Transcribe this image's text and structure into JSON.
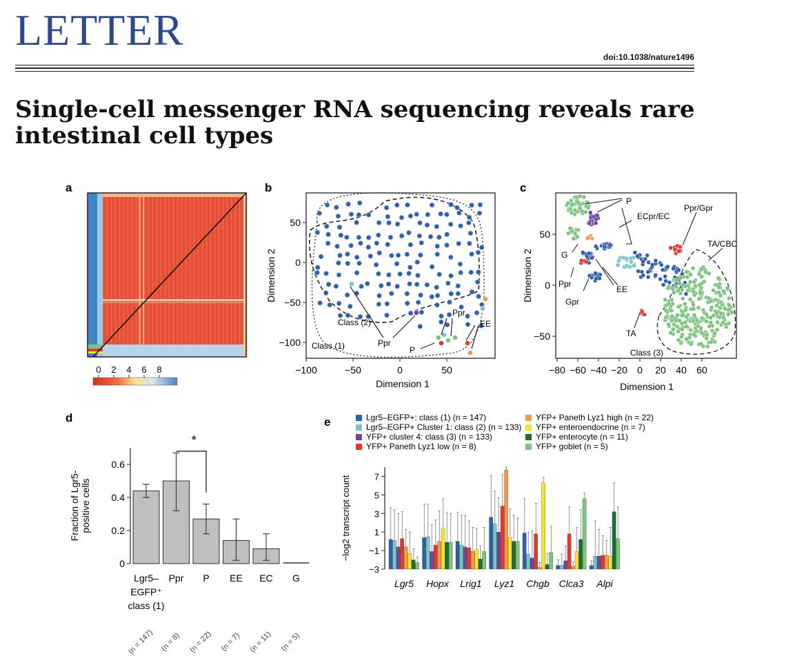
{
  "header": {
    "journal": "LETTER",
    "doi": "doi:10.1038/nature1496"
  },
  "article": {
    "title": "Single-cell messenger RNA sequencing reveals rare intestinal cell types"
  },
  "colors": {
    "journal_blue": "#2b4a8b",
    "bar_grey": "#bfbfbf",
    "class1_blue": "#2f5fa8",
    "cluster1_teal": "#79c6c6",
    "cluster4_purple": "#6a4a9c",
    "paneth_low_red": "#e03a2f",
    "paneth_high_orange": "#f2994a",
    "enteroendocrine_yellow": "#f5e42a",
    "enterocyte_green": "#1e6b35",
    "goblet_green": "#7cc47c"
  },
  "panels": {
    "a": {
      "label": "a",
      "colorbar_ticks": [
        "0",
        "2",
        "4",
        "6",
        "8"
      ]
    },
    "b": {
      "label": "b",
      "xlabel": "Dimension 1",
      "ylabel": "Dimension 2",
      "xticks": [
        "−100",
        "−50",
        "0",
        "50"
      ],
      "yticks": [
        "50",
        "0",
        "−50",
        "−100"
      ],
      "annotations": [
        "Class (1)",
        "Class (2)",
        "Ppr",
        "Ppr",
        "P",
        "EE"
      ]
    },
    "c": {
      "label": "c",
      "xlabel": "Dimension 1",
      "ylabel": "Dimension 2",
      "xticks": [
        "−80",
        "−60",
        "−40",
        "−20",
        "0",
        "20",
        "40",
        "60"
      ],
      "yticks": [
        "50",
        "0",
        "−50"
      ],
      "annotations": [
        "P",
        "ECpr/EC",
        "Ppr/Gpr",
        "TA/CBC",
        "G",
        "Ppr",
        "Gpr",
        "EE",
        "TA",
        "Class (3)"
      ]
    },
    "d": {
      "label": "d",
      "significance": "*"
    },
    "e": {
      "label": "e"
    }
  },
  "chart_data": [
    {
      "type": "bar",
      "panel": "d",
      "ylabel": "Fraction of Lgr5-positive cells",
      "ylim": [
        0,
        0.7
      ],
      "yticks": [
        "0",
        "0.2",
        "0.4",
        "0.6"
      ],
      "categories": [
        "Lgr5–EGFP+ class (1)",
        "Ppr",
        "P",
        "EE",
        "EC",
        "G"
      ],
      "category_lines": [
        [
          "Lgr5–",
          "EGFP⁺",
          "class (1)"
        ],
        [
          "Ppr"
        ],
        [
          "P"
        ],
        [
          "EE"
        ],
        [
          "EC"
        ],
        [
          "G"
        ]
      ],
      "n_labels": [
        "(n = 147)",
        "(n = 8)",
        "(n = 22)",
        "(n = 7)",
        "(n = 11)",
        "(n = 5)"
      ],
      "values": [
        0.44,
        0.5,
        0.27,
        0.14,
        0.09,
        0.0
      ],
      "error_low": [
        0.4,
        0.32,
        0.18,
        0.02,
        0.02,
        0.0
      ],
      "error_high": [
        0.48,
        0.67,
        0.36,
        0.27,
        0.18,
        0.0
      ]
    },
    {
      "type": "bar",
      "panel": "e",
      "ylabel": "−log2 transcript count",
      "ylim": [
        -3,
        8
      ],
      "yticks": [
        "7",
        "5",
        "3",
        "1",
        "−1",
        "−3"
      ],
      "categories": [
        "Lgr5",
        "Hopx",
        "Lrig1",
        "Lyz1",
        "Chgb",
        "Clca3",
        "Alpi"
      ],
      "series": [
        {
          "name": "Lgr5–EGFP+: class (1) (n = 147)",
          "color": "#2f5fa8",
          "values": [
            0.2,
            0.4,
            0.0,
            2.6,
            0.9,
            -2.6,
            -2.6
          ],
          "err": [
            3.4,
            3.6,
            3.1,
            4.5,
            3.7,
            0.6,
            0.5
          ]
        },
        {
          "name": "Lgr5–EGFP+ Cluster 1: class (2) (n = 133)",
          "color": "#79c6c6",
          "values": [
            0.1,
            0.5,
            -0.4,
            1.9,
            -1.4,
            -2.6,
            -1.6
          ],
          "err": [
            3.3,
            3.5,
            3.2,
            3.5,
            2.4,
            1.2,
            3.8
          ]
        },
        {
          "name": "YFP+ cluster 4: class (3) (n = 133)",
          "color": "#6a4a9c",
          "values": [
            -0.6,
            -1.1,
            -0.6,
            1.0,
            -1.8,
            -2.1,
            -1.6
          ],
          "err": [
            3.6,
            2.9,
            3.4,
            3.7,
            2.9,
            1.6,
            2.9
          ]
        },
        {
          "name": "YFP+ Paneth Lyz1 low (n = 8)",
          "color": "#e03a2f",
          "values": [
            0.3,
            -0.4,
            -0.7,
            3.8,
            0.8,
            0.8,
            -1.5
          ],
          "err": [
            2.9,
            2.7,
            2.9,
            3.4,
            3.3,
            2.9,
            2.1
          ]
        },
        {
          "name": "YFP+ Paneth Lyz1 high (n = 22)",
          "color": "#f2994a",
          "values": [
            -0.6,
            0.0,
            -1.1,
            7.7,
            -2.8,
            -2.7,
            -1.5
          ],
          "err": [
            1.9,
            3.3,
            2.6,
            0.5,
            0.5,
            0.5,
            1.6
          ]
        },
        {
          "name": "YFP+ enteroendocrine (n = 7)",
          "color": "#f5e42a",
          "values": [
            -1.3,
            1.4,
            -0.9,
            0.4,
            6.3,
            -1.1,
            -1.6
          ],
          "err": [
            2.3,
            3.2,
            2.3,
            3.1,
            0.6,
            2.6,
            3.1
          ]
        },
        {
          "name": "YFP+ enterocyte (n = 11)",
          "color": "#1e6b35",
          "values": [
            -2.0,
            -0.1,
            -1.9,
            0.0,
            -2.5,
            0.2,
            3.2
          ],
          "err": [
            1.2,
            3.2,
            1.4,
            2.8,
            1.2,
            3.2,
            3.1
          ]
        },
        {
          "name": "YFP+ goblet (n = 5)",
          "color": "#7cc47c",
          "values": [
            -2.3,
            -0.1,
            -1.1,
            0.0,
            -1.2,
            4.6,
            0.3
          ],
          "err": [
            0.6,
            3.1,
            2.6,
            2.5,
            2.8,
            0.6,
            3.4
          ]
        }
      ]
    }
  ]
}
